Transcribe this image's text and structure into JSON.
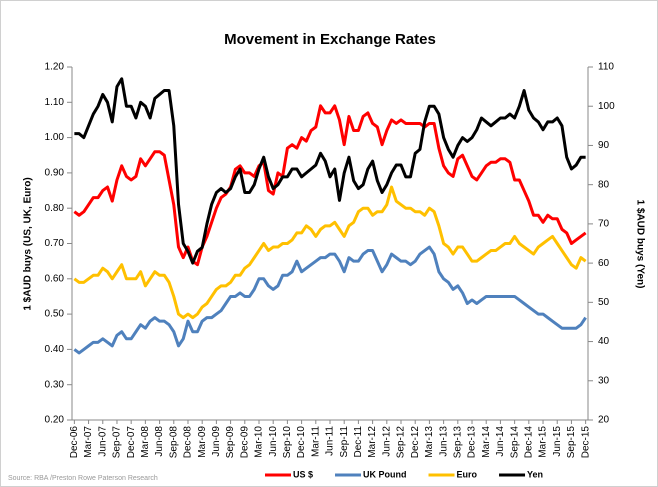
{
  "chart_data": {
    "type": "line",
    "title": "Movement in Exchange Rates",
    "y_label": "1 $AUD buys (US, UK, Euro)",
    "y2_label": "1 $AUD buys (Yen)",
    "source": "Source: RBA /Preston Rowe Paterson Research",
    "categories": [
      "Dec-06",
      null,
      null,
      "Mar-07",
      null,
      null,
      "Jun-07",
      null,
      null,
      "Sep-07",
      null,
      null,
      "Dec-07",
      null,
      null,
      "Mar-08",
      null,
      null,
      "Jun-08",
      null,
      null,
      "Sep-08",
      null,
      null,
      "Dec-08",
      null,
      null,
      "Mar-09",
      null,
      null,
      "Jun-09",
      null,
      null,
      "Sep-09",
      null,
      null,
      "Dec-09",
      null,
      null,
      "Mar-10",
      null,
      null,
      "Jun-10",
      null,
      null,
      "Sep-10",
      null,
      null,
      "Dec-10",
      null,
      null,
      "Mar-11",
      null,
      null,
      "Jun-11",
      null,
      null,
      "Sep-11",
      null,
      null,
      "Dec-11",
      null,
      null,
      "Mar-12",
      null,
      null,
      "Jun-12",
      null,
      null,
      "Sep-12",
      null,
      null,
      "Dec-12",
      null,
      null,
      "Mar-13",
      null,
      null,
      "Jun-13",
      null,
      null,
      "Sep-13",
      null,
      null,
      "Dec-13",
      null,
      null,
      "Mar-14",
      null,
      null,
      "Jun-14",
      null,
      null,
      "Sep-14",
      null,
      null,
      "Dec-14",
      null,
      null,
      "Mar-15",
      null,
      null,
      "Jun-15",
      null,
      null,
      "Sep-15",
      null,
      null,
      "Dec-15"
    ],
    "series": [
      {
        "name": "US $",
        "color": "#ff0000",
        "values": [
          0.79,
          0.78,
          0.79,
          0.81,
          0.83,
          0.83,
          0.85,
          0.86,
          0.82,
          0.88,
          0.92,
          0.89,
          0.88,
          0.89,
          0.94,
          0.92,
          0.94,
          0.96,
          0.96,
          0.95,
          0.88,
          0.81,
          0.69,
          0.66,
          0.69,
          0.65,
          0.64,
          0.69,
          0.72,
          0.76,
          0.8,
          0.83,
          0.84,
          0.86,
          0.91,
          0.92,
          0.9,
          0.9,
          0.89,
          0.92,
          0.93,
          0.85,
          0.84,
          0.9,
          0.89,
          0.97,
          0.98,
          0.97,
          1.0,
          0.99,
          1.02,
          1.03,
          1.09,
          1.07,
          1.07,
          1.09,
          1.05,
          0.98,
          1.06,
          1.02,
          1.02,
          1.06,
          1.07,
          1.04,
          1.03,
          0.98,
          1.02,
          1.05,
          1.04,
          1.05,
          1.04,
          1.04,
          1.04,
          1.04,
          1.03,
          1.04,
          1.04,
          0.97,
          0.92,
          0.9,
          0.89,
          0.94,
          0.95,
          0.92,
          0.89,
          0.88,
          0.9,
          0.92,
          0.93,
          0.93,
          0.94,
          0.94,
          0.93,
          0.88,
          0.88,
          0.85,
          0.82,
          0.78,
          0.78,
          0.76,
          0.78,
          0.77,
          0.77,
          0.74,
          0.73,
          0.7,
          0.71,
          0.72,
          0.73
        ]
      },
      {
        "name": "UK Pound",
        "color": "#4f81bd",
        "values": [
          0.4,
          0.39,
          0.4,
          0.41,
          0.42,
          0.42,
          0.43,
          0.42,
          0.41,
          0.44,
          0.45,
          0.43,
          0.43,
          0.45,
          0.47,
          0.46,
          0.48,
          0.49,
          0.48,
          0.48,
          0.47,
          0.45,
          0.41,
          0.43,
          0.48,
          0.45,
          0.45,
          0.48,
          0.49,
          0.49,
          0.5,
          0.51,
          0.53,
          0.55,
          0.55,
          0.56,
          0.55,
          0.55,
          0.57,
          0.6,
          0.6,
          0.58,
          0.57,
          0.58,
          0.61,
          0.61,
          0.62,
          0.65,
          0.62,
          0.63,
          0.64,
          0.65,
          0.66,
          0.66,
          0.67,
          0.67,
          0.65,
          0.62,
          0.66,
          0.65,
          0.65,
          0.67,
          0.68,
          0.68,
          0.65,
          0.62,
          0.64,
          0.67,
          0.66,
          0.65,
          0.65,
          0.64,
          0.65,
          0.67,
          0.68,
          0.69,
          0.67,
          0.62,
          0.6,
          0.59,
          0.57,
          0.58,
          0.56,
          0.53,
          0.54,
          0.53,
          0.54,
          0.55,
          0.55,
          0.55,
          0.55,
          0.55,
          0.55,
          0.55,
          0.54,
          0.53,
          0.52,
          0.51,
          0.5,
          0.5,
          0.49,
          0.48,
          0.47,
          0.46,
          0.46,
          0.46,
          0.46,
          0.47,
          0.49
        ]
      },
      {
        "name": "Euro",
        "color": "#ffc000",
        "values": [
          0.6,
          0.59,
          0.59,
          0.6,
          0.61,
          0.61,
          0.63,
          0.62,
          0.6,
          0.62,
          0.64,
          0.6,
          0.6,
          0.6,
          0.62,
          0.58,
          0.6,
          0.62,
          0.61,
          0.61,
          0.59,
          0.55,
          0.5,
          0.49,
          0.5,
          0.49,
          0.5,
          0.52,
          0.53,
          0.55,
          0.57,
          0.58,
          0.58,
          0.59,
          0.61,
          0.61,
          0.63,
          0.64,
          0.66,
          0.68,
          0.7,
          0.68,
          0.69,
          0.69,
          0.7,
          0.7,
          0.71,
          0.73,
          0.73,
          0.75,
          0.74,
          0.72,
          0.74,
          0.75,
          0.75,
          0.76,
          0.74,
          0.72,
          0.75,
          0.76,
          0.79,
          0.8,
          0.8,
          0.78,
          0.79,
          0.79,
          0.81,
          0.86,
          0.82,
          0.81,
          0.8,
          0.8,
          0.79,
          0.79,
          0.78,
          0.8,
          0.79,
          0.75,
          0.7,
          0.69,
          0.67,
          0.69,
          0.69,
          0.67,
          0.65,
          0.65,
          0.66,
          0.67,
          0.68,
          0.68,
          0.69,
          0.7,
          0.7,
          0.72,
          0.7,
          0.69,
          0.68,
          0.67,
          0.69,
          0.7,
          0.71,
          0.72,
          0.7,
          0.68,
          0.66,
          0.64,
          0.63,
          0.66,
          0.65
        ]
      },
      {
        "name": "Yen",
        "color": "#000000",
        "axis": "y2",
        "values": [
          93,
          93,
          92,
          95,
          98,
          100,
          103,
          101,
          96,
          105,
          107,
          100,
          100,
          97,
          101,
          100,
          97,
          102,
          103,
          104,
          104,
          95,
          75,
          65,
          63,
          60,
          63,
          64,
          70,
          75,
          78,
          79,
          78,
          79,
          82,
          84,
          78,
          78,
          80,
          84,
          87,
          82,
          79,
          80,
          82,
          82,
          84,
          84,
          82,
          83,
          84,
          85,
          88,
          86,
          82,
          84,
          76,
          83,
          87,
          81,
          79,
          80,
          84,
          86,
          81,
          78,
          80,
          83,
          85,
          85,
          82,
          82,
          88,
          89,
          96,
          100,
          100,
          98,
          92,
          89,
          87,
          90,
          92,
          91,
          92,
          94,
          97,
          96,
          95,
          96,
          97,
          97,
          98,
          97,
          100,
          104,
          99,
          97,
          96,
          94,
          96,
          96,
          97,
          95,
          87,
          84,
          85,
          87,
          87
        ]
      }
    ],
    "ylim": [
      0.2,
      1.2
    ],
    "yticks": [
      {
        "value": 0.2,
        "label": "0.20"
      },
      {
        "value": 0.3,
        "label": "0.30"
      },
      {
        "value": 0.4,
        "label": "0.40"
      },
      {
        "value": 0.5,
        "label": "0.50"
      },
      {
        "value": 0.6,
        "label": "0.60"
      },
      {
        "value": 0.7,
        "label": "0.70"
      },
      {
        "value": 0.8,
        "label": "0.80"
      },
      {
        "value": 0.9,
        "label": "0.90"
      },
      {
        "value": 1.0,
        "label": "1.00"
      },
      {
        "value": 1.1,
        "label": "1.10"
      },
      {
        "value": 1.2,
        "label": "1.20"
      }
    ],
    "y2lim": [
      20,
      110
    ],
    "y2ticks": [
      20,
      30,
      40,
      50,
      60,
      70,
      80,
      90,
      100,
      110
    ],
    "grid": false,
    "legend": "bottom"
  }
}
